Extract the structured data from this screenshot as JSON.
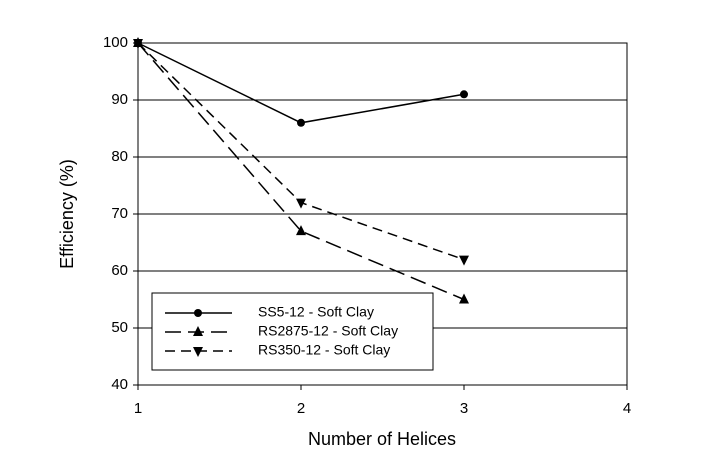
{
  "chart_data": {
    "type": "line",
    "x_label": "Number of Helices",
    "y_label": "Efficiency (%)",
    "x": [
      1,
      2,
      3
    ],
    "series": [
      {
        "name": "SS5-12 - Soft Clay",
        "color": "#000000",
        "marker": "circle",
        "line_style": "solid",
        "values": [
          100,
          86,
          91
        ]
      },
      {
        "name": "RS2875-12 - Soft Clay",
        "color": "#000000",
        "marker": "triangle-up",
        "line_style": "long-dash",
        "values": [
          100,
          67,
          55
        ]
      },
      {
        "name": "RS350-12 - Soft Clay",
        "color": "#000000",
        "marker": "triangle-down",
        "line_style": "dash",
        "values": [
          100,
          72,
          62
        ]
      }
    ],
    "xlim": [
      1,
      4
    ],
    "xticks": [
      1,
      2,
      3,
      4
    ],
    "ylim": [
      40,
      100
    ],
    "yticks": [
      40,
      50,
      60,
      70,
      80,
      90,
      100
    ],
    "grid": "horizontal",
    "legend_position": "lower left"
  }
}
